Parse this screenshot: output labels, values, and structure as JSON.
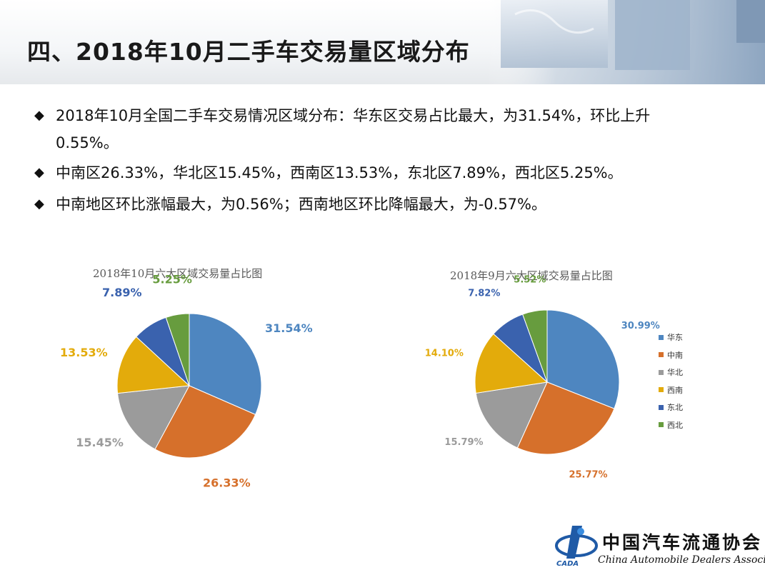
{
  "header": {
    "title": "四、2018年10月二手车交易量区域分布"
  },
  "bullets": [
    {
      "line1": "2018年10月全国二手车交易情况区域分布：华东区交易占比最大，为31.54%，环比上升",
      "line2": "0.55%。"
    },
    {
      "line1": "中南区26.33%，华北区15.45%，西南区13.53%，东北区7.89%，西北区5.25%。",
      "line2": ""
    },
    {
      "line1": "中南地区环比涨幅最大，为0.56%；西南地区环比降幅最大，为-0.57%。",
      "line2": ""
    }
  ],
  "bullet_mark": "◆",
  "colors": {
    "华东": "#4e86c0",
    "中南": "#d6702b",
    "华北": "#9b9b9b",
    "西南": "#e3ab0b",
    "东北": "#3a62ae",
    "西北": "#679c3e"
  },
  "chart_data": [
    {
      "type": "pie",
      "title": "2018年10月六大区域交易量占比图",
      "categories": [
        "华东",
        "中南",
        "华北",
        "西南",
        "东北",
        "西北"
      ],
      "values": [
        31.54,
        26.33,
        15.45,
        13.53,
        7.89,
        5.25
      ],
      "labels": [
        "31.54%",
        "26.33%",
        "15.45%",
        "13.53%",
        "7.89%",
        "5.25%"
      ],
      "legend": false
    },
    {
      "type": "pie",
      "title": "2018年9月六大区域交易量占比图",
      "categories": [
        "华东",
        "中南",
        "华北",
        "西南",
        "东北",
        "西北"
      ],
      "values": [
        30.99,
        25.77,
        15.79,
        14.1,
        7.82,
        5.52
      ],
      "labels": [
        "30.99%",
        "25.77%",
        "15.79%",
        "14.10%",
        "7.82%",
        "5.52%"
      ],
      "legend": true,
      "legend_position": "right"
    }
  ],
  "footer": {
    "logo_cn": "中国汽车流通协会",
    "logo_en": "China Automobile Dealers Association",
    "logo_abbr": "CADA"
  }
}
